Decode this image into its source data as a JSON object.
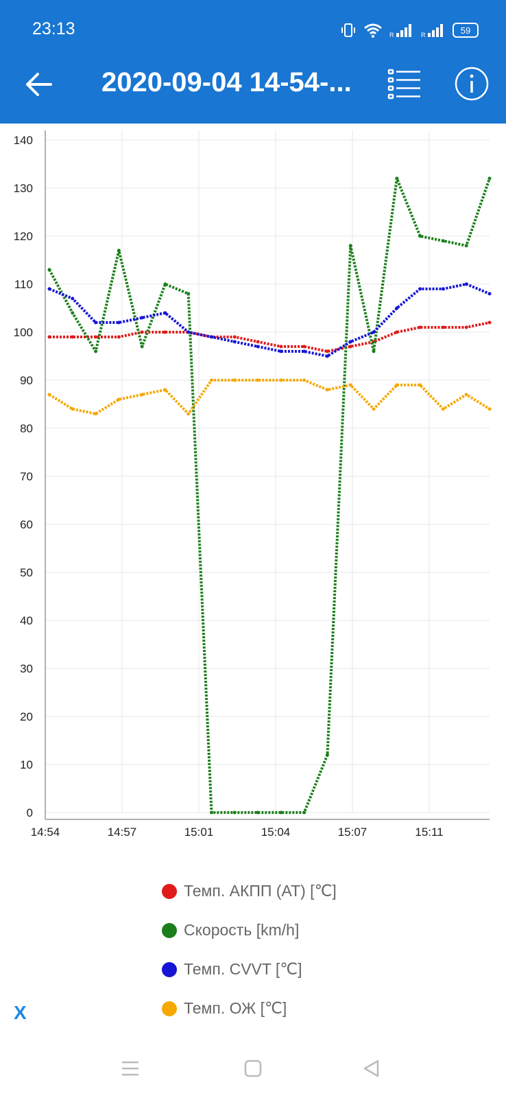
{
  "status_bar": {
    "time": "23:13",
    "battery": "59"
  },
  "app_bar": {
    "title": "2020-09-04 14-54-..."
  },
  "icons": {
    "back": "arrow-left-icon",
    "list": "list-icon",
    "info": "info-icon",
    "vibrate": "vibrate-icon",
    "wifi": "wifi-icon",
    "signal": "signal-icon"
  },
  "legend": [
    {
      "label": "Темп. АКПП (AT) [℃]",
      "color": "#e11b1b"
    },
    {
      "label": "Скорость [km/h]",
      "color": "#1a7f1a"
    },
    {
      "label": "Темп. CVVT [℃]",
      "color": "#1515d6"
    },
    {
      "label": "Темп. ОЖ [℃]",
      "color": "#f5a800"
    }
  ],
  "close_label": "X",
  "chart_data": {
    "type": "line",
    "y_ticks": [
      "0",
      "10",
      "20",
      "30",
      "40",
      "50",
      "60",
      "70",
      "80",
      "90",
      "100",
      "110",
      "120",
      "130",
      "140"
    ],
    "x_ticks": [
      "14:54",
      "14:57",
      "15:01",
      "15:04",
      "15:07",
      "15:11"
    ],
    "ylim": [
      0,
      140
    ],
    "grid": true,
    "x": [
      "14:54",
      "14:55",
      "14:56",
      "14:57",
      "14:58",
      "14:59",
      "15:00",
      "15:01",
      "15:02",
      "15:03",
      "15:04",
      "15:05",
      "15:06",
      "15:07",
      "15:08",
      "15:09",
      "15:10",
      "15:11",
      "15:12",
      "15:13"
    ],
    "series": [
      {
        "name": "Темп. АКПП (AT) [℃]",
        "color": "#e11b1b",
        "values": [
          99,
          99,
          99,
          99,
          100,
          100,
          100,
          99,
          99,
          98,
          97,
          97,
          96,
          97,
          98,
          100,
          101,
          101,
          101,
          102
        ]
      },
      {
        "name": "Скорость [km/h]",
        "color": "#1a7f1a",
        "values": [
          113,
          104,
          96,
          117,
          97,
          110,
          108,
          0,
          0,
          0,
          0,
          0,
          12,
          118,
          96,
          132,
          120,
          119,
          118,
          132
        ]
      },
      {
        "name": "Темп. CVVT [℃]",
        "color": "#1515d6",
        "values": [
          109,
          107,
          102,
          102,
          103,
          104,
          100,
          99,
          98,
          97,
          96,
          96,
          95,
          98,
          100,
          105,
          109,
          109,
          110,
          108
        ]
      },
      {
        "name": "Темп. ОЖ [℃]",
        "color": "#f5a800",
        "values": [
          87,
          84,
          83,
          86,
          87,
          88,
          83,
          90,
          90,
          90,
          90,
          90,
          88,
          89,
          84,
          89,
          89,
          84,
          87,
          84
        ]
      }
    ]
  }
}
